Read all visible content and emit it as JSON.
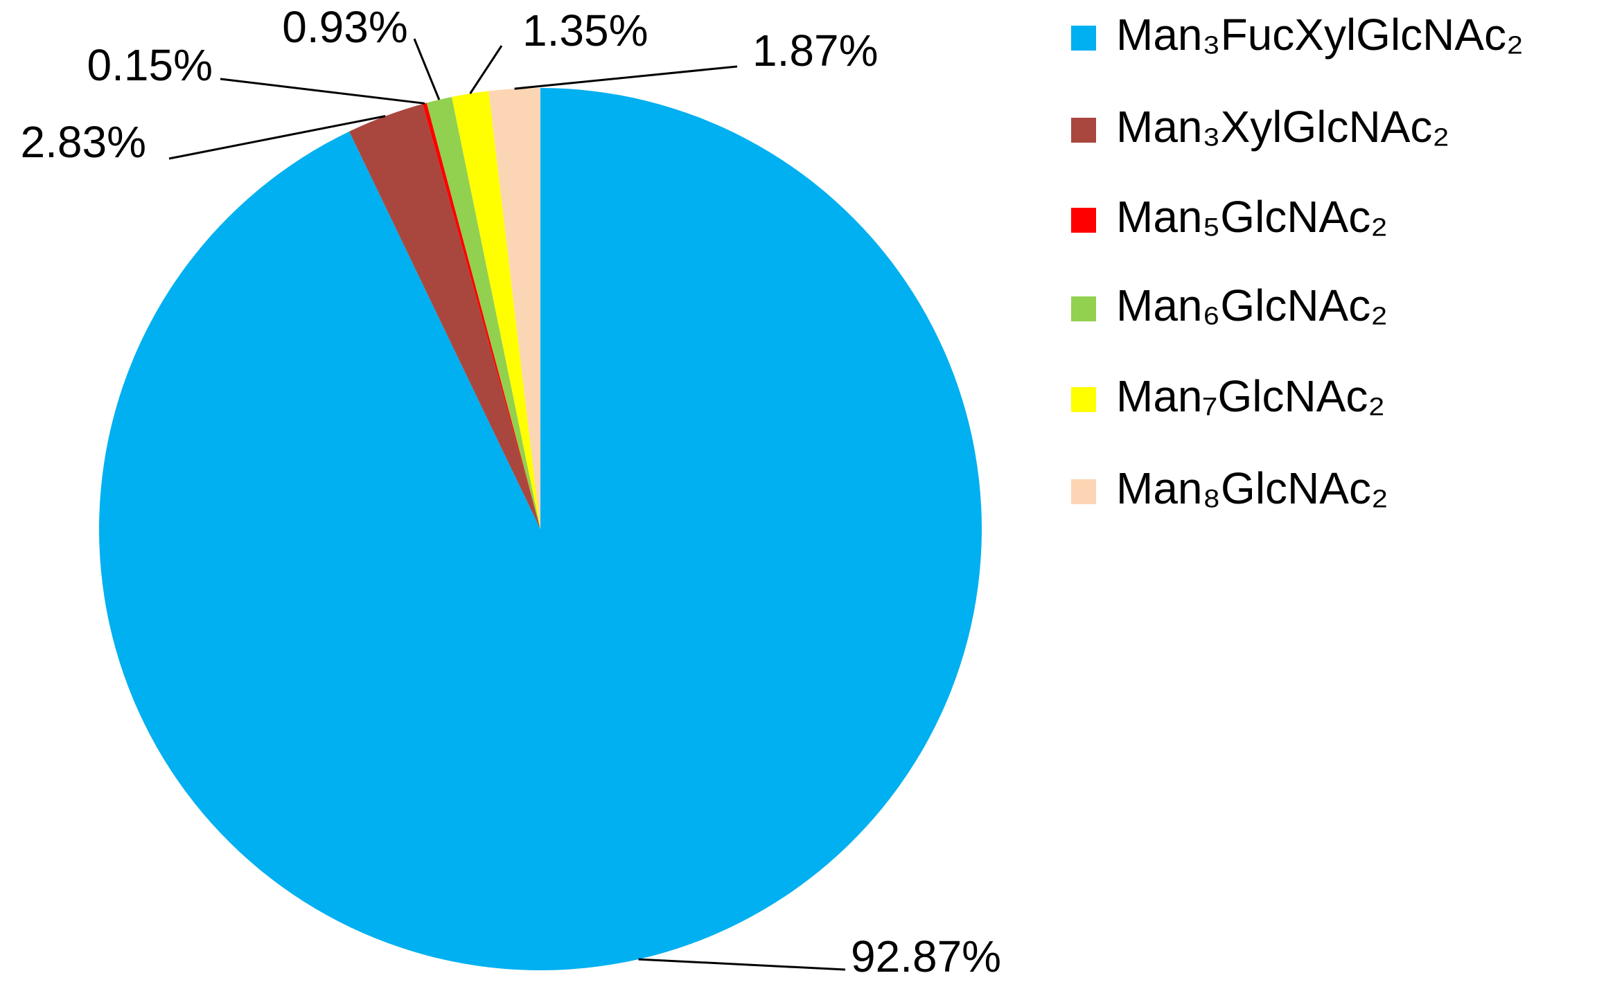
{
  "chart_data": {
    "type": "pie",
    "categories": [
      "Man₃FucXylGlcNAc₂",
      "Man₃XylGlcNAc₂",
      "Man₅GlcNAc₂",
      "Man₆GlcNAc₂",
      "Man₇GlcNAc₂",
      "Man₈GlcNAc₂"
    ],
    "values": [
      92.87,
      2.83,
      0.15,
      0.93,
      1.35,
      1.87
    ],
    "value_labels": [
      "92.87%",
      "2.83%",
      "0.15%",
      "0.93%",
      "1.35%",
      "1.87%"
    ],
    "colors": [
      "#00b0f0",
      "#a9473f",
      "#ff0000",
      "#92d050",
      "#ffff00",
      "#fcd5b5"
    ],
    "legend": "right"
  }
}
